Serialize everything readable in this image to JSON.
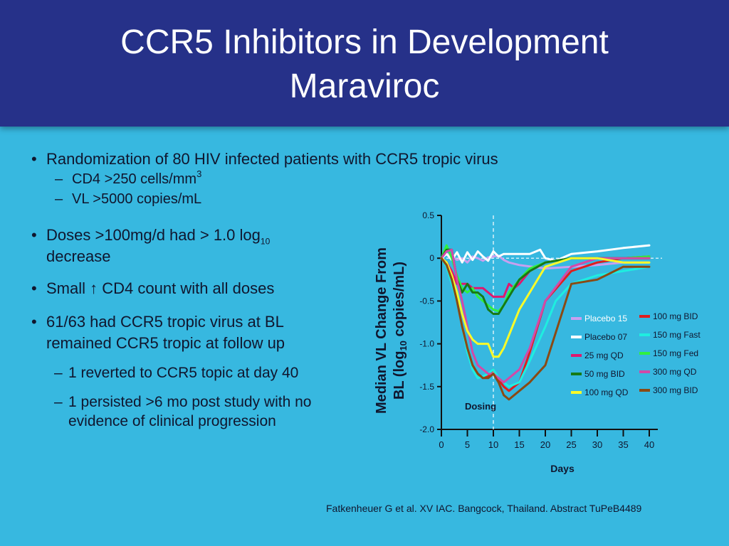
{
  "slide": {
    "title_line1": "CCR5 Inhibitors in Development",
    "title_line2": "Maraviroc"
  },
  "bullets": {
    "randomization": "Randomization of 80 HIV infected patients with CCR5 tropic virus",
    "cd4_prefix": "CD4 >250 cells/mm",
    "cd4_sup": "3",
    "vl": "VL >5000 copies/mL",
    "doses_prefix": "Doses >100mg/d had > 1.0 log",
    "doses_sub": "10",
    "doses_suffix": "decrease",
    "small_prefix": "Small",
    "small_arrow": "↑",
    "small_suffix": "CD4 count with all doses",
    "tropic_line1": "61/63 had CCR5 tropic virus at BL",
    "tropic_line2": "remained CCR5 tropic at follow up",
    "reverted": "1 reverted to CCR5 topic at day 40",
    "persisted_line1": "1 persisted >6 mo post study with no",
    "persisted_line2": "evidence of clinical progression"
  },
  "citation": "Fatkenheuer G et al. XV IAC. Bangcock, Thailand. Abstract TuPeB4489",
  "chart_data": {
    "type": "line",
    "ylabel_line1": "Median VL Change From",
    "ylabel_line2_prefix": "BL (log",
    "ylabel_line2_sub": "10",
    "ylabel_line2_suffix": " copies/mL)",
    "xlabel": "Days",
    "xlim": [
      0,
      40
    ],
    "ylim": [
      -2.0,
      0.5
    ],
    "xticks": [
      0,
      5,
      10,
      15,
      20,
      25,
      30,
      35,
      40
    ],
    "yticks": [
      0.5,
      0,
      -0.5,
      -1.0,
      -1.5,
      -2.0
    ],
    "ytick_labels": [
      "0.5",
      "0",
      "-0.5",
      "-1.0",
      "-1.5",
      "-2.0"
    ],
    "reference_line_y": 0,
    "dosing_marker_x": 10,
    "dosing_label": "Dosing",
    "legend_position": "right",
    "series": [
      {
        "name": "Placebo 15",
        "color": "#c8a0f0",
        "x": [
          0,
          1,
          2,
          3,
          4,
          5,
          6,
          7,
          8,
          9,
          10,
          11,
          12,
          13,
          15,
          20,
          25,
          30,
          35,
          40
        ],
        "y": [
          0,
          0.05,
          0.03,
          -0.02,
          0,
          -0.05,
          0.02,
          0,
          -0.03,
          0.01,
          0.02,
          0.03,
          -0.02,
          -0.05,
          -0.08,
          -0.12,
          -0.1,
          -0.08,
          -0.05,
          -0.05
        ]
      },
      {
        "name": "100 mg BID",
        "color": "#e01e1e",
        "x": [
          0,
          1,
          2,
          3,
          4,
          5,
          6,
          7,
          8,
          9,
          10,
          11,
          12,
          13,
          15,
          17,
          20,
          25,
          30,
          35,
          40
        ],
        "y": [
          0,
          -0.05,
          -0.2,
          -0.5,
          -0.8,
          -1.05,
          -1.25,
          -1.35,
          -1.4,
          -1.38,
          -1.3,
          -1.42,
          -1.5,
          -1.55,
          -1.45,
          -1.1,
          -0.5,
          -0.15,
          -0.05,
          0,
          0.02
        ]
      },
      {
        "name": "Placebo 07",
        "color": "#ffffff",
        "x": [
          0,
          1,
          2,
          3,
          4,
          5,
          6,
          7,
          8,
          9,
          10,
          11,
          12,
          15,
          17,
          19,
          20,
          22,
          25,
          30,
          35,
          40
        ],
        "y": [
          0,
          0.05,
          -0.02,
          0.07,
          -0.05,
          0.07,
          -0.02,
          0.08,
          0.02,
          -0.03,
          0.08,
          0.02,
          0.05,
          0.05,
          0.05,
          0.1,
          0,
          -0.03,
          0.05,
          0.08,
          0.12,
          0.15
        ]
      },
      {
        "name": "150 mg Fast",
        "color": "#1eeee0",
        "x": [
          0,
          1,
          2,
          3,
          4,
          5,
          6,
          7,
          8,
          9,
          10,
          11,
          12,
          13,
          15,
          17,
          20,
          22,
          25,
          30,
          35,
          40
        ],
        "y": [
          0,
          -0.1,
          -0.3,
          -0.5,
          -0.8,
          -1.1,
          -1.3,
          -1.4,
          -1.38,
          -1.35,
          -1.3,
          -1.4,
          -1.45,
          -1.5,
          -1.45,
          -1.2,
          -0.8,
          -0.5,
          -0.3,
          -0.2,
          -0.15,
          -0.1
        ]
      },
      {
        "name": "25 mg QD",
        "color": "#e0186e",
        "x": [
          0,
          1,
          2,
          3,
          4,
          5,
          6,
          7,
          8,
          9,
          10,
          11,
          12,
          13,
          14,
          15,
          17,
          20,
          25,
          30,
          35,
          40
        ],
        "y": [
          0,
          -0.05,
          -0.15,
          -0.3,
          -0.3,
          -0.3,
          -0.35,
          -0.35,
          -0.35,
          -0.4,
          -0.45,
          -0.45,
          -0.45,
          -0.3,
          -0.35,
          -0.3,
          -0.15,
          -0.05,
          0,
          0,
          0,
          0
        ]
      },
      {
        "name": "150 mg Fed",
        "color": "#30f040",
        "x": [
          0,
          1,
          2,
          3,
          4,
          5,
          6,
          7,
          8,
          9,
          10,
          11,
          12,
          13,
          15,
          17,
          20,
          25,
          30,
          35,
          40
        ],
        "y": [
          0,
          0.15,
          0,
          -0.2,
          -0.35,
          -0.4,
          -0.35,
          -0.45,
          -0.5,
          -0.55,
          -0.6,
          -0.62,
          -0.55,
          -0.4,
          -0.25,
          -0.12,
          -0.05,
          0,
          0,
          0,
          0.02
        ]
      },
      {
        "name": "50 mg BID",
        "color": "#167a16",
        "x": [
          0,
          1,
          2,
          3,
          4,
          5,
          6,
          7,
          8,
          9,
          10,
          11,
          12,
          13,
          15,
          17,
          20,
          25,
          30,
          35,
          40
        ],
        "y": [
          0,
          0.1,
          0.1,
          -0.25,
          -0.4,
          -0.3,
          -0.4,
          -0.4,
          -0.45,
          -0.6,
          -0.65,
          -0.65,
          -0.55,
          -0.45,
          -0.25,
          -0.15,
          -0.05,
          0,
          0,
          0,
          0
        ]
      },
      {
        "name": "300 mg QD",
        "color": "#d24aa8",
        "x": [
          0,
          1,
          2,
          3,
          4,
          5,
          6,
          7,
          8,
          9,
          10,
          11,
          12,
          13,
          15,
          17,
          20,
          25,
          30,
          35,
          40
        ],
        "y": [
          0,
          0.08,
          0.1,
          -0.25,
          -0.5,
          -0.8,
          -1.1,
          -1.25,
          -1.3,
          -1.35,
          -1.35,
          -1.4,
          -1.45,
          -1.4,
          -1.3,
          -1.05,
          -0.5,
          -0.1,
          0,
          0,
          0
        ]
      },
      {
        "name": "100 mg QD",
        "color": "#fafa28",
        "x": [
          0,
          1,
          2,
          3,
          4,
          5,
          6,
          7,
          8,
          9,
          10,
          11,
          12,
          13,
          15,
          17,
          20,
          25,
          30,
          35,
          40
        ],
        "y": [
          0,
          -0.05,
          -0.2,
          -0.4,
          -0.65,
          -0.85,
          -0.95,
          -1.0,
          -1.0,
          -1.0,
          -1.15,
          -1.15,
          -1.05,
          -0.9,
          -0.6,
          -0.4,
          -0.1,
          0,
          0,
          -0.05,
          -0.05
        ]
      },
      {
        "name": "300 mg BID",
        "color": "#8a4a14",
        "x": [
          0,
          1,
          2,
          3,
          4,
          5,
          6,
          7,
          8,
          9,
          10,
          11,
          12,
          13,
          15,
          17,
          20,
          25,
          30,
          35,
          40
        ],
        "y": [
          0,
          -0.08,
          -0.25,
          -0.5,
          -0.8,
          -1.05,
          -1.25,
          -1.35,
          -1.4,
          -1.4,
          -1.35,
          -1.45,
          -1.6,
          -1.65,
          -1.55,
          -1.45,
          -1.25,
          -0.3,
          -0.25,
          -0.1,
          -0.1
        ]
      }
    ]
  }
}
